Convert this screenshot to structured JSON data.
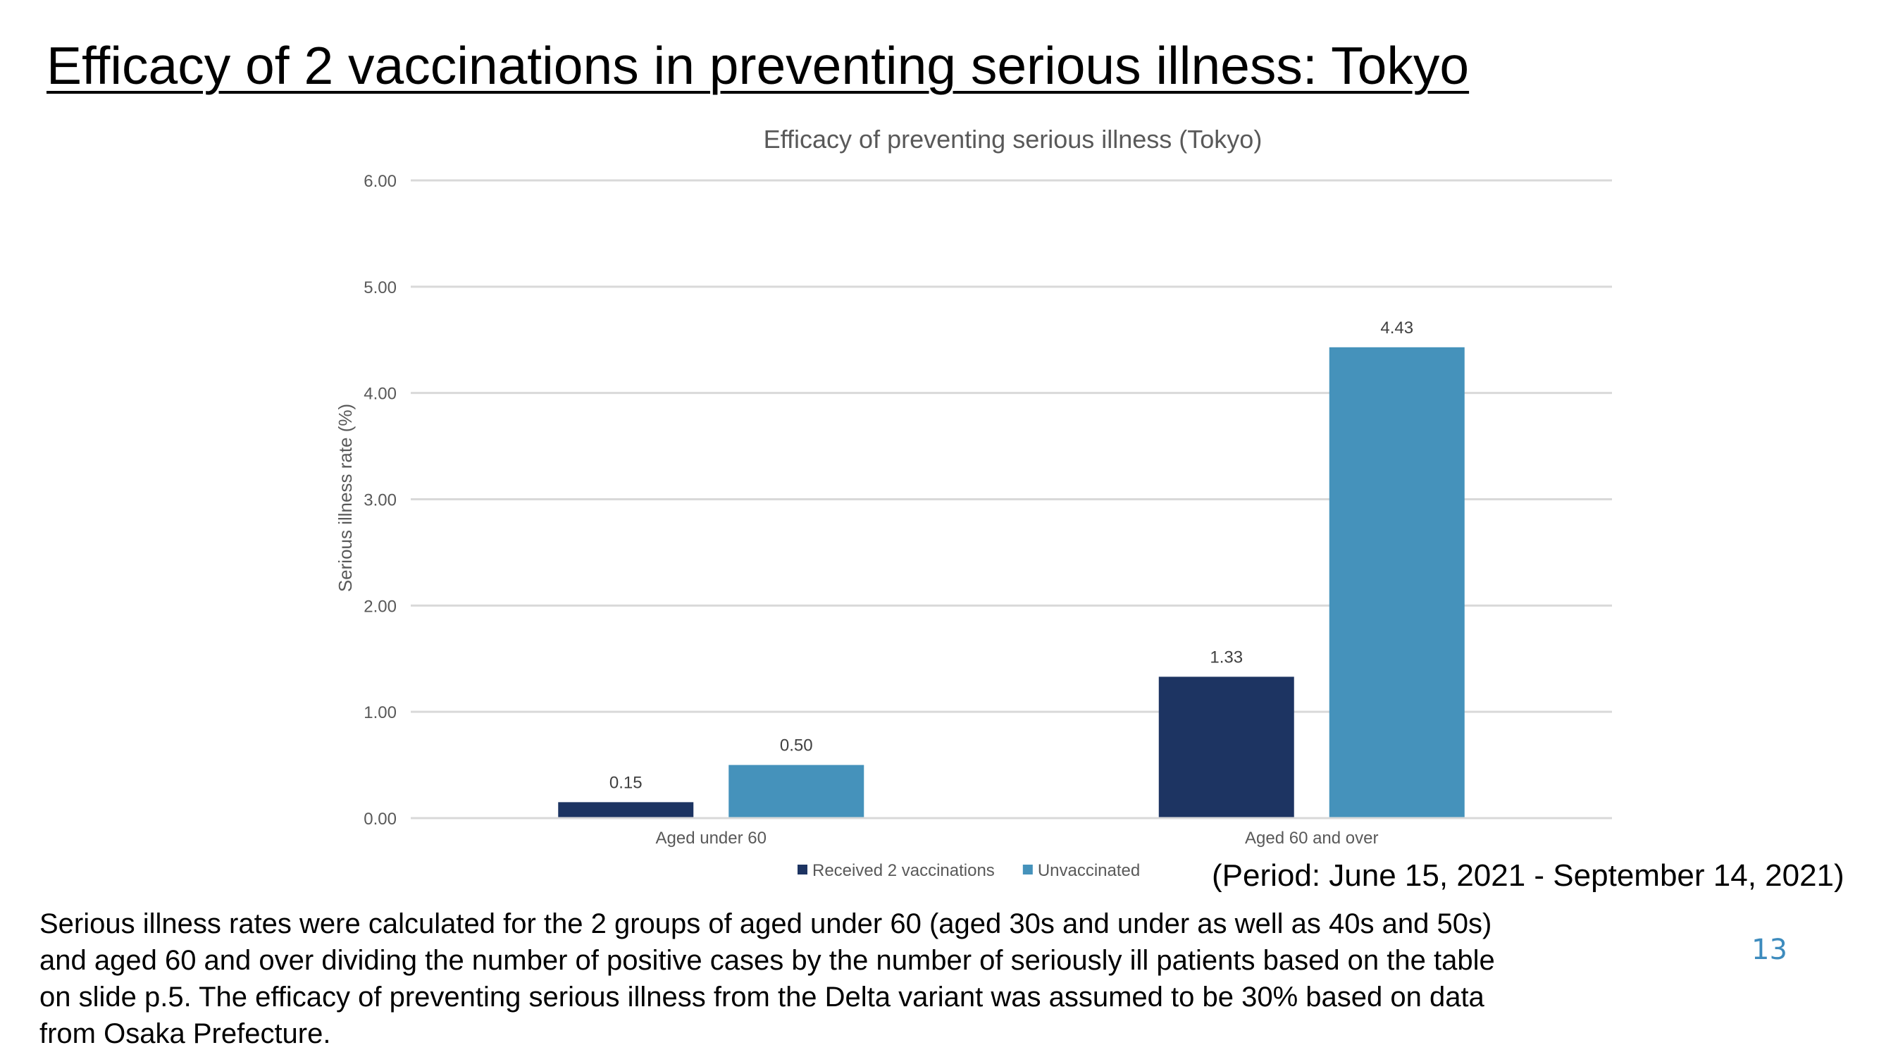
{
  "slide": {
    "title": "Efficacy of 2 vaccinations in preventing serious illness: Tokyo",
    "period": "(Period: June 15, 2021 - September 14, 2021)",
    "footnote_lines": [
      "Serious illness rates were calculated for the 2 groups of aged under 60 (aged 30s and under as well as 40s and 50s)",
      "and aged 60 and over dividing the number of positive cases by the number of seriously ill patients based on the table",
      "on slide p.5. The efficacy of preventing serious illness from the Delta variant was assumed to be 30% based on data",
      "from Osaka Prefecture."
    ],
    "page_number": "13"
  },
  "chart_data": {
    "type": "bar",
    "title": "Efficacy of preventing serious illness (Tokyo)",
    "ylabel": "Serious illness rate (%)",
    "xlabel": "",
    "categories": [
      "Aged under 60",
      "Aged 60 and over"
    ],
    "series": [
      {
        "name": "Received 2 vaccinations",
        "color": "#1d3462",
        "values": [
          0.15,
          1.33
        ],
        "labels": [
          "0.15",
          "1.33"
        ]
      },
      {
        "name": "Unvaccinated",
        "color": "#4592bb",
        "values": [
          0.5,
          4.43
        ],
        "labels": [
          "0.50",
          "4.43"
        ]
      }
    ],
    "ylim": [
      0,
      6
    ],
    "yticks": [
      0,
      1,
      2,
      3,
      4,
      5,
      6
    ],
    "ytick_labels": [
      "0.00",
      "1.00",
      "2.00",
      "3.00",
      "4.00",
      "5.00",
      "6.00"
    ],
    "grid": true,
    "legend_position": "bottom"
  }
}
